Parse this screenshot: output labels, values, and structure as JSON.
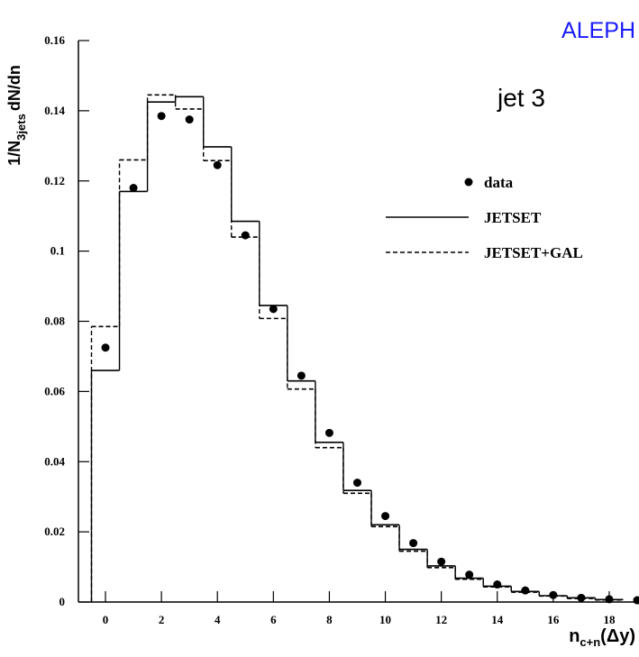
{
  "chart_data": {
    "type": "histogram",
    "annotations": [
      "ALEPH",
      "jet 3"
    ],
    "annotation_colors": [
      "#1a1aff",
      "#000000"
    ],
    "ylabel": [
      "1/N",
      "3jets",
      "dN/dn"
    ],
    "xlabel": [
      "n",
      "c+n",
      "(Δy)"
    ],
    "bins": [
      -0.5,
      0.5,
      1.5,
      2.5,
      3.5,
      4.5,
      5.5,
      6.5,
      7.5,
      8.5,
      9.5,
      10.5,
      11.5,
      12.5,
      13.5,
      14.5,
      15.5,
      16.5,
      17.5,
      18.5
    ],
    "xlim": [
      -0.5,
      19
    ],
    "ylim": [
      0,
      0.16
    ],
    "xticks": [
      0,
      2,
      4,
      6,
      8,
      10,
      12,
      14,
      16,
      18
    ],
    "yticks": [
      0,
      0.02,
      0.04,
      0.06,
      0.08,
      0.1,
      0.12,
      0.14,
      0.16
    ],
    "series": [
      {
        "name": "data",
        "color": "#000000",
        "style": "points",
        "x": [
          0,
          1,
          2,
          3,
          4,
          5,
          6,
          7,
          8,
          9,
          10,
          11,
          12,
          13,
          14,
          15,
          16,
          17,
          18,
          19
        ],
        "values": [
          0.0725,
          0.118,
          0.1385,
          0.1375,
          0.1245,
          0.1045,
          0.0835,
          0.0645,
          0.0482,
          0.034,
          0.0245,
          0.0168,
          0.0115,
          0.0078,
          0.005,
          0.0033,
          0.002,
          0.0012,
          0.0008,
          0.0005
        ]
      },
      {
        "name": "JETSET",
        "color": "#000000",
        "style": "solid",
        "values": [
          0.066,
          0.117,
          0.1425,
          0.144,
          0.1297,
          0.1085,
          0.0845,
          0.063,
          0.0455,
          0.0318,
          0.022,
          0.015,
          0.0103,
          0.0068,
          0.0045,
          0.003,
          0.0018,
          0.0012,
          0.0007
        ]
      },
      {
        "name": "JETSET+GAL",
        "color": "#000000",
        "style": "dashed",
        "values": [
          0.0785,
          0.126,
          0.1445,
          0.1405,
          0.1258,
          0.104,
          0.0808,
          0.0607,
          0.044,
          0.031,
          0.0215,
          0.0145,
          0.0098,
          0.0065,
          0.0043,
          0.0028,
          0.0017,
          0.001,
          0.0006
        ]
      }
    ]
  }
}
